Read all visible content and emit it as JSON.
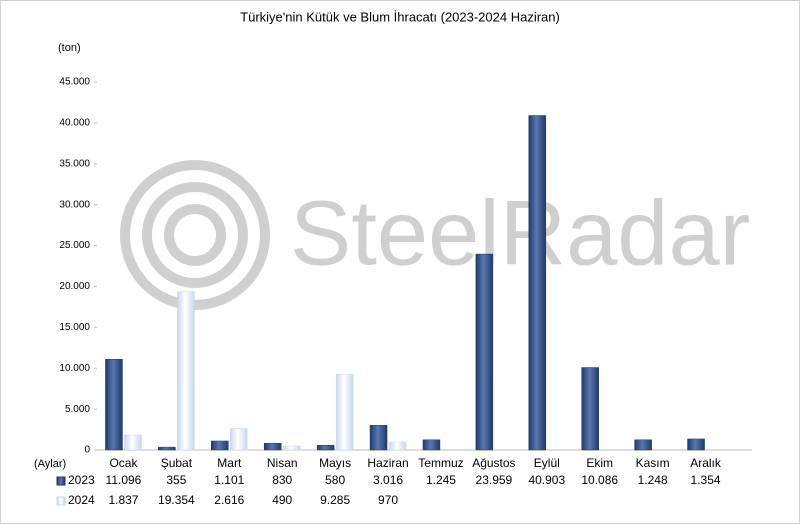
{
  "chart_data": {
    "type": "bar",
    "title": "Türkiye'nin  Kütük ve Blum İhracatı (2023-2024 Haziran)",
    "y_label": "(ton)",
    "x_label": "(Aylar)",
    "watermark": "SteelRadar",
    "categories": [
      "Ocak",
      "Şubat",
      "Mart",
      "Nisan",
      "Mayıs",
      "Haziran",
      "Temmuz",
      "Ağustos",
      "Eylül",
      "Ekim",
      "Kasım",
      "Aralık"
    ],
    "series": [
      {
        "name": "2023",
        "color": "#1f3a6b",
        "values": [
          11096,
          355,
          1101,
          830,
          580,
          3016,
          1245,
          23959,
          40903,
          10086,
          1248,
          1354
        ],
        "value_labels": [
          "11.096",
          "355",
          "1.101",
          "830",
          "580",
          "3.016",
          "1.245",
          "23.959",
          "40.903",
          "10.086",
          "1.248",
          "1.354"
        ]
      },
      {
        "name": "2024",
        "color": "#c9d6ee",
        "values": [
          1837,
          19354,
          2616,
          490,
          9285,
          970,
          null,
          null,
          null,
          null,
          null,
          null
        ],
        "value_labels": [
          "1.837",
          "19.354",
          "2.616",
          "490",
          "9.285",
          "970",
          null,
          null,
          null,
          null,
          null,
          null
        ]
      }
    ],
    "ylim": [
      0,
      45000
    ],
    "yticks": [
      0,
      {
        "value": 5000,
        "label": "5.000"
      },
      {
        "value": 10000,
        "label": "10.000"
      },
      {
        "value": 15000,
        "label": "15.000"
      },
      {
        "value": 20000,
        "label": "20.000"
      },
      {
        "value": 25000,
        "label": "25.000"
      },
      {
        "value": 30000,
        "label": "30.000"
      },
      {
        "value": 35000,
        "label": "35.000"
      },
      {
        "value": 40000,
        "label": "40.000"
      },
      {
        "value": 45000,
        "label": "45.000"
      }
    ],
    "grid": false
  }
}
